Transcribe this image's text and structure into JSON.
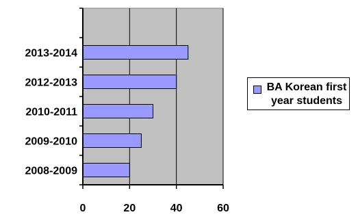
{
  "chart_data": {
    "type": "bar",
    "orientation": "horizontal",
    "categories": [
      "2008-2009",
      "2009-2010",
      "2010-2011",
      "2012-2013",
      "2013-2014"
    ],
    "series": [
      {
        "name": "BA Korean first year students",
        "values": [
          20,
          25,
          30,
          40,
          45
        ]
      }
    ],
    "title": "",
    "xlabel": "",
    "ylabel": "",
    "xlim": [
      0,
      60
    ],
    "x_ticks": [
      "0",
      "20",
      "40",
      "60"
    ],
    "grid": true,
    "legend_position": "right",
    "colors": {
      "bar": "#9999ff",
      "plot_background": "#c0c0c0",
      "gridline": "#000000"
    }
  },
  "legend": {
    "line1": "BA Korean first",
    "line2": "year students"
  }
}
